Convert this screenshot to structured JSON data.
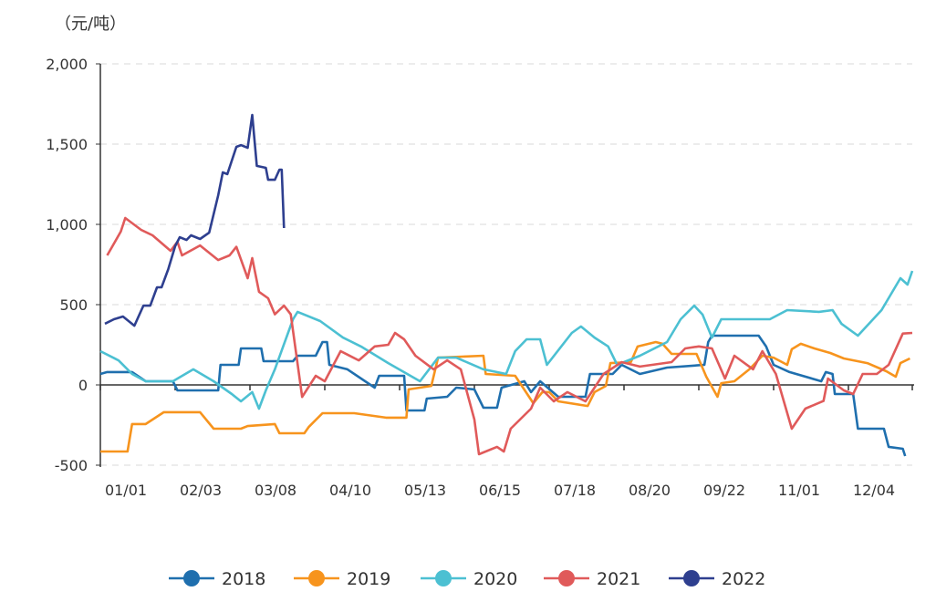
{
  "chart_data": {
    "type": "line",
    "title": "",
    "ylabel": "（元/吨）",
    "xlabel": "",
    "ylim": [
      -500,
      2000
    ],
    "yticks": [
      -500,
      0,
      500,
      1000,
      1500,
      2000
    ],
    "ytick_labels": [
      "-500",
      "0",
      "500",
      "1,000",
      "1,500",
      "2,000"
    ],
    "xtick_labels": [
      "01/01",
      "02/03",
      "03/08",
      "04/10",
      "05/13",
      "06/15",
      "07/18",
      "08/20",
      "09/22",
      "11/01",
      "12/04"
    ],
    "xlim": [
      "01/01",
      "12/31"
    ],
    "grid": "horizontal dashed",
    "legend_position": "bottom",
    "series": [
      {
        "name": "2018",
        "color": "#1f6fae",
        "points": [
          [
            "01/01",
            68
          ],
          [
            "01/04",
            80
          ],
          [
            "01/15",
            80
          ],
          [
            "01/21",
            23
          ],
          [
            "02/02",
            23
          ],
          [
            "02/04",
            -34
          ],
          [
            "02/22",
            -34
          ],
          [
            "02/23",
            125
          ],
          [
            "03/03",
            125
          ],
          [
            "03/04",
            227
          ],
          [
            "03/13",
            227
          ],
          [
            "03/14",
            148
          ],
          [
            "03/27",
            148
          ],
          [
            "03/29",
            182
          ],
          [
            "04/06",
            182
          ],
          [
            "04/09",
            267
          ],
          [
            "04/11",
            267
          ],
          [
            "04/12",
            125
          ],
          [
            "04/20",
            97
          ],
          [
            "05/02",
            -17
          ],
          [
            "05/04",
            57
          ],
          [
            "05/15",
            57
          ],
          [
            "05/16",
            -159
          ],
          [
            "05/24",
            -159
          ],
          [
            "05/25",
            -85
          ],
          [
            "06/03",
            -74
          ],
          [
            "06/07",
            -17
          ],
          [
            "06/15",
            -28
          ],
          [
            "06/19",
            -142
          ],
          [
            "06/25",
            -142
          ],
          [
            "06/27",
            -17
          ],
          [
            "07/07",
            23
          ],
          [
            "07/10",
            -45
          ],
          [
            "07/14",
            23
          ],
          [
            "07/22",
            -74
          ],
          [
            "08/03",
            -74
          ],
          [
            "08/05",
            68
          ],
          [
            "08/15",
            68
          ],
          [
            "08/19",
            125
          ],
          [
            "08/27",
            68
          ],
          [
            "09/08",
            108
          ],
          [
            "09/25",
            125
          ],
          [
            "09/27",
            267
          ],
          [
            "09/29",
            307
          ],
          [
            "10/24",
            307
          ],
          [
            "10/28",
            239
          ],
          [
            "11/01",
            125
          ],
          [
            "11/08",
            80
          ],
          [
            "11/22",
            23
          ],
          [
            "11/24",
            80
          ],
          [
            "11/27",
            68
          ],
          [
            "11/28",
            -57
          ],
          [
            "12/06",
            -57
          ],
          [
            "12/08",
            -273
          ],
          [
            "12/19",
            -273
          ],
          [
            "12/21",
            -386
          ],
          [
            "12/27",
            -398
          ],
          [
            "12/28",
            -443
          ]
        ]
      },
      {
        "name": "2019",
        "color": "#f7941d",
        "points": [
          [
            "01/01",
            -415
          ],
          [
            "01/13",
            -415
          ],
          [
            "01/15",
            -244
          ],
          [
            "01/21",
            -244
          ],
          [
            "01/29",
            -170
          ],
          [
            "02/14",
            -170
          ],
          [
            "02/20",
            -273
          ],
          [
            "03/04",
            -273
          ],
          [
            "03/07",
            -256
          ],
          [
            "03/19",
            -244
          ],
          [
            "03/21",
            -301
          ],
          [
            "04/01",
            -301
          ],
          [
            "04/03",
            -261
          ],
          [
            "04/09",
            -176
          ],
          [
            "04/23",
            -176
          ],
          [
            "05/07",
            -204
          ],
          [
            "05/16",
            -204
          ],
          [
            "05/17",
            -28
          ],
          [
            "05/27",
            -6
          ],
          [
            "05/30",
            170
          ],
          [
            "06/19",
            182
          ],
          [
            "06/20",
            68
          ],
          [
            "07/03",
            57
          ],
          [
            "07/11",
            -114
          ],
          [
            "07/15",
            -45
          ],
          [
            "07/18",
            -45
          ],
          [
            "07/22",
            -102
          ],
          [
            "08/04",
            -131
          ],
          [
            "08/07",
            -45
          ],
          [
            "08/12",
            -6
          ],
          [
            "08/14",
            136
          ],
          [
            "08/23",
            142
          ],
          [
            "08/26",
            239
          ],
          [
            "09/03",
            267
          ],
          [
            "09/06",
            256
          ],
          [
            "09/10",
            193
          ],
          [
            "09/21",
            193
          ],
          [
            "09/26",
            51
          ],
          [
            "10/02",
            -74
          ],
          [
            "10/04",
            11
          ],
          [
            "10/11",
            23
          ],
          [
            "10/19",
            97
          ],
          [
            "10/26",
            182
          ],
          [
            "11/01",
            170
          ],
          [
            "11/07",
            125
          ],
          [
            "11/09",
            222
          ],
          [
            "11/13",
            256
          ],
          [
            "11/19",
            227
          ],
          [
            "11/26",
            199
          ],
          [
            "12/02",
            165
          ],
          [
            "12/12",
            136
          ],
          [
            "12/20",
            85
          ],
          [
            "12/24",
            51
          ],
          [
            "12/26",
            136
          ],
          [
            "12/30",
            165
          ]
        ]
      },
      {
        "name": "2020",
        "color": "#4cc0d2",
        "points": [
          [
            "01/01",
            210
          ],
          [
            "01/09",
            153
          ],
          [
            "01/15",
            68
          ],
          [
            "01/21",
            23
          ],
          [
            "02/02",
            23
          ],
          [
            "02/11",
            97
          ],
          [
            "02/20",
            23
          ],
          [
            "02/28",
            -57
          ],
          [
            "03/04",
            -102
          ],
          [
            "03/09",
            -45
          ],
          [
            "03/12",
            -148
          ],
          [
            "03/15",
            -34
          ],
          [
            "03/19",
            97
          ],
          [
            "03/27",
            409
          ],
          [
            "03/29",
            455
          ],
          [
            "04/08",
            398
          ],
          [
            "04/18",
            295
          ],
          [
            "04/26",
            239
          ],
          [
            "05/08",
            136
          ],
          [
            "05/22",
            23
          ],
          [
            "05/30",
            170
          ],
          [
            "06/07",
            170
          ],
          [
            "06/19",
            97
          ],
          [
            "06/29",
            68
          ],
          [
            "07/03",
            210
          ],
          [
            "07/08",
            284
          ],
          [
            "07/14",
            284
          ],
          [
            "07/17",
            125
          ],
          [
            "07/28",
            324
          ],
          [
            "08/01",
            364
          ],
          [
            "08/07",
            295
          ],
          [
            "08/13",
            240
          ],
          [
            "08/17",
            125
          ],
          [
            "08/27",
            182
          ],
          [
            "09/08",
            267
          ],
          [
            "09/14",
            409
          ],
          [
            "09/20",
            494
          ],
          [
            "09/24",
            438
          ],
          [
            "09/29",
            295
          ],
          [
            "10/04",
            409
          ],
          [
            "10/16",
            409
          ],
          [
            "10/30",
            409
          ],
          [
            "11/07",
            466
          ],
          [
            "11/21",
            455
          ],
          [
            "11/27",
            466
          ],
          [
            "12/01",
            380
          ],
          [
            "12/08",
            307
          ],
          [
            "12/18",
            466
          ],
          [
            "12/26",
            665
          ],
          [
            "12/29",
            625
          ],
          [
            "12/31",
            710
          ]
        ]
      },
      {
        "name": "2021",
        "color": "#e05a5a",
        "points": [
          [
            "01/04",
            807
          ],
          [
            "01/10",
            955
          ],
          [
            "01/12",
            1040
          ],
          [
            "01/19",
            966
          ],
          [
            "01/24",
            932
          ],
          [
            "02/01",
            835
          ],
          [
            "02/04",
            892
          ],
          [
            "02/06",
            807
          ],
          [
            "02/14",
            869
          ],
          [
            "02/22",
            778
          ],
          [
            "02/27",
            807
          ],
          [
            "03/02",
            860
          ],
          [
            "03/07",
            665
          ],
          [
            "03/09",
            790
          ],
          [
            "03/12",
            580
          ],
          [
            "03/16",
            540
          ],
          [
            "03/19",
            440
          ],
          [
            "03/23",
            494
          ],
          [
            "03/26",
            440
          ],
          [
            "03/31",
            -75
          ],
          [
            "04/06",
            57
          ],
          [
            "04/10",
            23
          ],
          [
            "04/17",
            210
          ],
          [
            "04/25",
            153
          ],
          [
            "05/02",
            240
          ],
          [
            "05/08",
            250
          ],
          [
            "05/11",
            324
          ],
          [
            "05/15",
            284
          ],
          [
            "05/20",
            182
          ],
          [
            "05/28",
            97
          ],
          [
            "06/03",
            153
          ],
          [
            "06/09",
            97
          ],
          [
            "06/15",
            -216
          ],
          [
            "06/17",
            -432
          ],
          [
            "06/25",
            -386
          ],
          [
            "06/28",
            -415
          ],
          [
            "07/01",
            -273
          ],
          [
            "07/10",
            -148
          ],
          [
            "07/14",
            -17
          ],
          [
            "07/20",
            -102
          ],
          [
            "07/26",
            -45
          ],
          [
            "08/03",
            -102
          ],
          [
            "08/11",
            68
          ],
          [
            "08/19",
            142
          ],
          [
            "08/27",
            114
          ],
          [
            "09/10",
            142
          ],
          [
            "09/16",
            227
          ],
          [
            "09/22",
            240
          ],
          [
            "09/29",
            227
          ],
          [
            "10/06",
            40
          ],
          [
            "10/11",
            182
          ],
          [
            "10/21",
            97
          ],
          [
            "10/26",
            210
          ],
          [
            "11/02",
            68
          ],
          [
            "11/09",
            -273
          ],
          [
            "11/15",
            -148
          ],
          [
            "11/23",
            -100
          ],
          [
            "11/25",
            40
          ],
          [
            "12/02",
            -34
          ],
          [
            "12/06",
            -57
          ],
          [
            "12/10",
            68
          ],
          [
            "12/16",
            68
          ],
          [
            "12/21",
            125
          ],
          [
            "12/27",
            320
          ],
          [
            "12/31",
            324
          ]
        ]
      },
      {
        "name": "2022",
        "color": "#2e3f8f",
        "points": [
          [
            "01/03",
            381
          ],
          [
            "01/07",
            409
          ],
          [
            "01/11",
            426
          ],
          [
            "01/16",
            369
          ],
          [
            "01/20",
            494
          ],
          [
            "01/23",
            494
          ],
          [
            "01/26",
            608
          ],
          [
            "01/28",
            608
          ],
          [
            "01/31",
            722
          ],
          [
            "02/03",
            864
          ],
          [
            "02/05",
            920
          ],
          [
            "02/08",
            903
          ],
          [
            "02/10",
            932
          ],
          [
            "02/14",
            909
          ],
          [
            "02/18",
            949
          ],
          [
            "02/22",
            1182
          ],
          [
            "02/24",
            1324
          ],
          [
            "02/26",
            1313
          ],
          [
            "03/02",
            1483
          ],
          [
            "03/04",
            1494
          ],
          [
            "03/07",
            1477
          ],
          [
            "03/09",
            1682
          ],
          [
            "03/11",
            1364
          ],
          [
            "03/15",
            1352
          ],
          [
            "03/16",
            1278
          ],
          [
            "03/19",
            1278
          ],
          [
            "03/21",
            1341
          ],
          [
            "03/22",
            1341
          ],
          [
            "03/23",
            977
          ]
        ]
      }
    ]
  }
}
